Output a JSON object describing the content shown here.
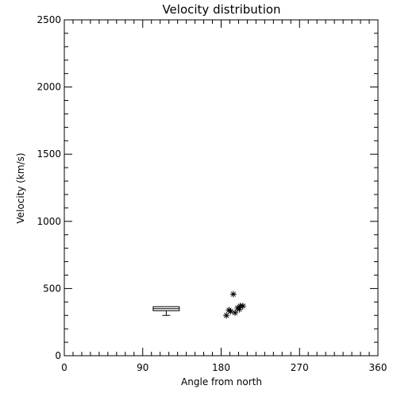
{
  "chart_data": {
    "type": "scatter",
    "title": "Velocity distribution",
    "xlabel": "Angle from north",
    "ylabel": "Velocity (km/s)",
    "xlim": [
      0,
      360
    ],
    "ylim": [
      0,
      2500
    ],
    "xticks": [
      0,
      90,
      180,
      270,
      360
    ],
    "xtick_labels": [
      "0",
      "90",
      "180",
      "270",
      "360"
    ],
    "yticks": [
      0,
      500,
      1000,
      1500,
      2000,
      2500
    ],
    "ytick_labels": [
      "0",
      "500",
      "1000",
      "1500",
      "2000",
      "2500"
    ],
    "x_minor_step": 10,
    "y_minor_step": 100,
    "grid": false,
    "boxplot": {
      "x_range": [
        102,
        132
      ],
      "q1": 335,
      "median": 350,
      "q3": 365,
      "whisker_low": 300,
      "whisker_high": 365
    },
    "points": [
      {
        "x": 194,
        "y": 458
      },
      {
        "x": 189,
        "y": 340
      },
      {
        "x": 186,
        "y": 300
      },
      {
        "x": 191,
        "y": 330
      },
      {
        "x": 196,
        "y": 320
      },
      {
        "x": 199,
        "y": 355
      },
      {
        "x": 202,
        "y": 370
      },
      {
        "x": 205,
        "y": 370
      },
      {
        "x": 201,
        "y": 345
      }
    ],
    "marker": "asterisk",
    "color": "#000000"
  }
}
